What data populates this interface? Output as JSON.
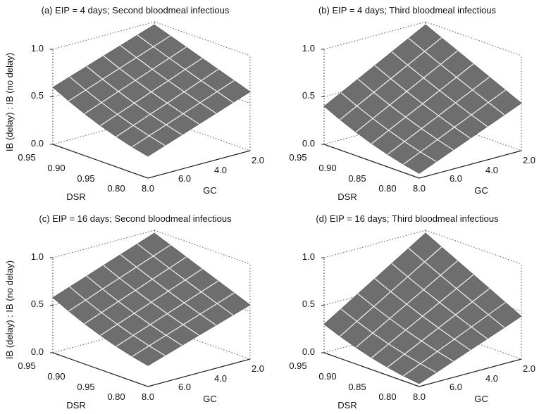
{
  "ylabel": "IB (delay) : IB (no delay)",
  "chart_data": [
    {
      "type": "surface3d",
      "title": "(a) EIP = 4 days; Second bloodmeal infectious",
      "zticks": [
        "0.0",
        "0.5",
        "1.0"
      ],
      "dsr_ticks": [
        "0.95",
        "0.90",
        "0.95",
        "0.80"
      ],
      "gc_ticks": [
        "8.0",
        "6.0",
        "4.0",
        "2.0"
      ],
      "xlabel": "DSR",
      "ylabel": "GC",
      "z_corners": {
        "dsr_high_gc_high": 0.6,
        "dsr_high_gc_low": 0.97,
        "dsr_low_gc_low": 0.62,
        "dsr_low_gc_high": 0.23
      }
    },
    {
      "type": "surface3d",
      "title": "(b) EIP = 4 days; Third bloodmeal infectious",
      "zticks": [
        "0.0",
        "0.5",
        "1.0"
      ],
      "dsr_ticks": [
        "0.95",
        "0.90",
        "0.85",
        "0.80"
      ],
      "gc_ticks": [
        "8.0",
        "6.0",
        "4.0",
        "2.0"
      ],
      "xlabel": "DSR",
      "ylabel": "GC",
      "z_corners": {
        "dsr_high_gc_high": 0.4,
        "dsr_high_gc_low": 0.97,
        "dsr_low_gc_low": 0.5,
        "dsr_low_gc_high": 0.05
      }
    },
    {
      "type": "surface3d",
      "title": "(c) EIP = 16 days; Second bloodmeal infectious",
      "zticks": [
        "0.0",
        "0.5",
        "1.0"
      ],
      "dsr_ticks": [
        "0.95",
        "0.90",
        "0.95",
        "0.80"
      ],
      "gc_ticks": [
        "8.0",
        "6.0",
        "4.0",
        "2.0"
      ],
      "xlabel": "DSR",
      "ylabel": "GC",
      "z_corners": {
        "dsr_high_gc_high": 0.58,
        "dsr_high_gc_low": 0.97,
        "dsr_low_gc_low": 0.57,
        "dsr_low_gc_high": 0.22
      }
    },
    {
      "type": "surface3d",
      "title": "(d) EIP = 16 days; Third bloodmeal infectious",
      "zticks": [
        "0.0",
        "0.5",
        "1.0"
      ],
      "dsr_ticks": [
        "0.95",
        "0.90",
        "0.85",
        "0.80"
      ],
      "gc_ticks": [
        "8.0",
        "6.0",
        "4.0",
        "2.0"
      ],
      "xlabel": "DSR",
      "ylabel": "GC",
      "z_corners": {
        "dsr_high_gc_high": 0.3,
        "dsr_high_gc_low": 0.97,
        "dsr_low_gc_low": 0.45,
        "dsr_low_gc_high": 0.03
      }
    }
  ],
  "colors": {
    "surface": "#6e6e6e",
    "mesh": "#f2f2f2",
    "box": "#555555"
  }
}
